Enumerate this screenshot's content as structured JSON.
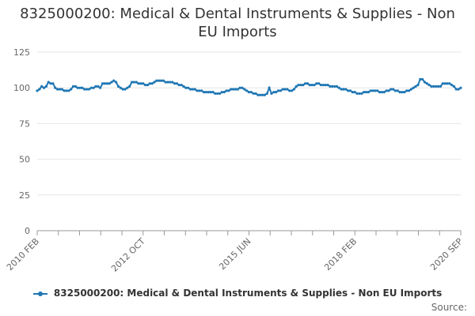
{
  "title_line1": "8325000200: Medical & Dental Instruments & Supplies - Non",
  "title_line2": "EU Imports",
  "legend_label": "8325000200: Medical & Dental Instruments & Supplies - Non EU Imports",
  "source_label": "Source:",
  "colors": {
    "series": "#1f77b4",
    "grid": "#e6e6e6",
    "axis": "#999999"
  },
  "chart_data": {
    "type": "line",
    "title": "8325000200: Medical & Dental Instruments & Supplies - Non EU Imports",
    "xlabel": "",
    "ylabel": "",
    "ylim": [
      0,
      125
    ],
    "yticks": [
      0,
      25,
      50,
      75,
      100,
      125
    ],
    "xticks": [
      "2010 FEB",
      "2012 OCT",
      "2015 JUN",
      "2018 FEB",
      "2020 SEP"
    ],
    "grid": true,
    "legend": "bottom",
    "x_start": "2010 FEB",
    "x_end": "2020 SEP",
    "series": [
      {
        "name": "8325000200: Medical & Dental Instruments & Supplies - Non EU Imports",
        "values": [
          98,
          99,
          101,
          100,
          101,
          104,
          103,
          103,
          100,
          99,
          99,
          99,
          98,
          98,
          98,
          99,
          101,
          101,
          100,
          100,
          100,
          99,
          99,
          99,
          100,
          100,
          101,
          101,
          100,
          103,
          103,
          103,
          103,
          104,
          105,
          104,
          101,
          100,
          99,
          99,
          100,
          101,
          104,
          104,
          104,
          103,
          103,
          103,
          102,
          102,
          103,
          103,
          104,
          105,
          105,
          105,
          105,
          104,
          104,
          104,
          104,
          103,
          103,
          102,
          102,
          101,
          100,
          100,
          99,
          99,
          99,
          98,
          98,
          98,
          97,
          97,
          97,
          97,
          97,
          96,
          96,
          96,
          97,
          97,
          98,
          98,
          99,
          99,
          99,
          99,
          100,
          100,
          99,
          98,
          97,
          97,
          96,
          96,
          95,
          95,
          95,
          95,
          96,
          100,
          96,
          97,
          97,
          98,
          98,
          99,
          99,
          99,
          98,
          98,
          99,
          101,
          102,
          102,
          102,
          103,
          103,
          102,
          102,
          102,
          103,
          103,
          102,
          102,
          102,
          102,
          101,
          101,
          101,
          101,
          100,
          99,
          99,
          99,
          98,
          98,
          97,
          97,
          96,
          96,
          96,
          97,
          97,
          97,
          98,
          98,
          98,
          98,
          97,
          97,
          97,
          98,
          98,
          99,
          99,
          98,
          98,
          97,
          97,
          97,
          98,
          98,
          99,
          100,
          101,
          102,
          106,
          106,
          104,
          103,
          102,
          101,
          101,
          101,
          101,
          101,
          103,
          103,
          103,
          103,
          102,
          101,
          99,
          99,
          100
        ]
      }
    ]
  }
}
